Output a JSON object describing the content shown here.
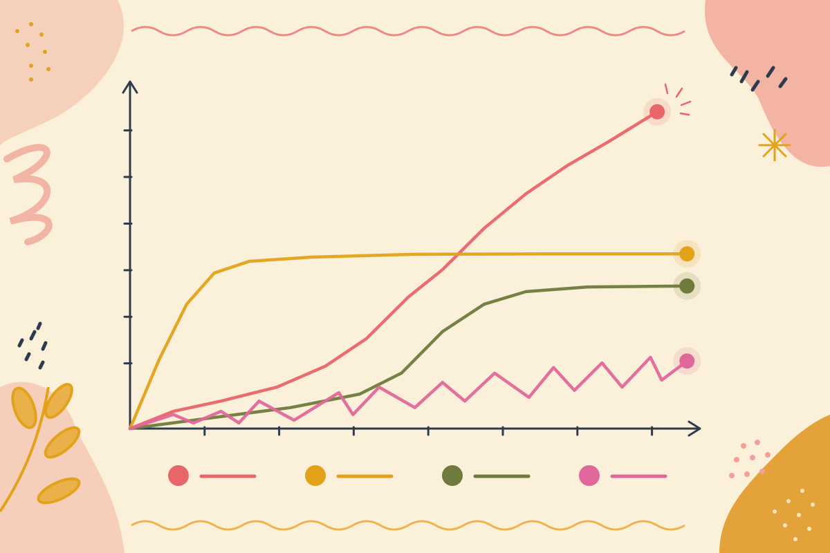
{
  "chart_data": {
    "type": "line",
    "xlim": [
      0,
      7.65
    ],
    "xticks": [
      1,
      2,
      3,
      4,
      5,
      6,
      7
    ],
    "ylim": [
      0,
      7.5
    ],
    "yticks": [
      1.4,
      2.4,
      3.4,
      4.4,
      5.4,
      6.4
    ],
    "series": [
      {
        "color": "#e8656a",
        "x": [
          0,
          0.58,
          1.22,
          1.97,
          2.62,
          3.17,
          3.73,
          4.19,
          4.75,
          5.31,
          5.86,
          6.42,
          7.07
        ],
        "values": [
          0,
          0.37,
          0.59,
          0.89,
          1.34,
          1.93,
          2.82,
          3.41,
          4.3,
          5.04,
          5.64,
          6.16,
          6.8
        ]
      },
      {
        "color": "#e3a21a",
        "x": [
          0,
          0.39,
          0.76,
          1.13,
          1.6,
          2.43,
          3.82,
          5.68,
          7.47
        ],
        "values": [
          0,
          1.48,
          2.67,
          3.34,
          3.59,
          3.68,
          3.74,
          3.75,
          3.75
        ]
      },
      {
        "color": "#6f7a3c",
        "x": [
          0,
          1.04,
          2.15,
          3.08,
          3.64,
          4.19,
          4.75,
          5.31,
          6.14,
          7.47
        ],
        "values": [
          0,
          0.22,
          0.45,
          0.74,
          1.19,
          2.08,
          2.67,
          2.94,
          3.04,
          3.06
        ]
      },
      {
        "color": "#e0679a",
        "x": [
          0,
          0.58,
          0.85,
          1.22,
          1.46,
          1.73,
          2.2,
          2.8,
          2.99,
          3.34,
          3.82,
          4.19,
          4.49,
          4.89,
          5.35,
          5.68,
          5.96,
          6.33,
          6.6,
          6.98,
          7.13,
          7.47
        ],
        "values": [
          0,
          0.3,
          0.12,
          0.37,
          0.12,
          0.59,
          0.18,
          0.77,
          0.3,
          0.89,
          0.45,
          0.99,
          0.59,
          1.19,
          0.67,
          1.31,
          0.82,
          1.41,
          0.89,
          1.53,
          1.04,
          1.45
        ]
      }
    ]
  }
}
